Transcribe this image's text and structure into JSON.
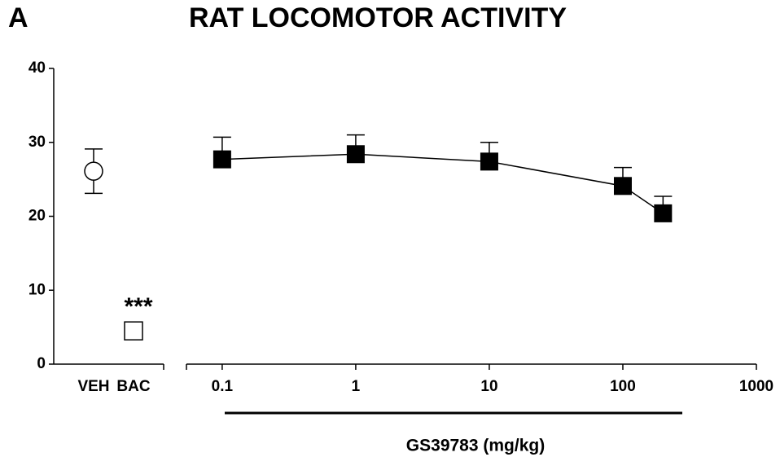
{
  "chart_data": {
    "type": "errorbar",
    "panel_label": "A",
    "title": "RAT LOCOMOTOR ACTIVITY",
    "ylim": [
      0,
      40
    ],
    "yticks": [
      0,
      10,
      20,
      30,
      40
    ],
    "categories": [
      "VEH",
      "BAC"
    ],
    "category_values": [
      26.1,
      4.5
    ],
    "category_errors": [
      3,
      null
    ],
    "category_markers": [
      "circle",
      "square"
    ],
    "annotation": "***",
    "x": [
      0.1,
      1,
      10,
      100,
      200
    ],
    "values": [
      27.7,
      28.4,
      27.4,
      24.1,
      20.4
    ],
    "errors": [
      3,
      2.6,
      2.6,
      2.5,
      2.3
    ],
    "xscale": "log",
    "xlim": [
      0.054,
      1000
    ],
    "xticks": [
      0.1,
      1,
      10,
      100,
      1000
    ],
    "xlabel": "GS39783 (mg/kg)",
    "color": "#000000"
  }
}
